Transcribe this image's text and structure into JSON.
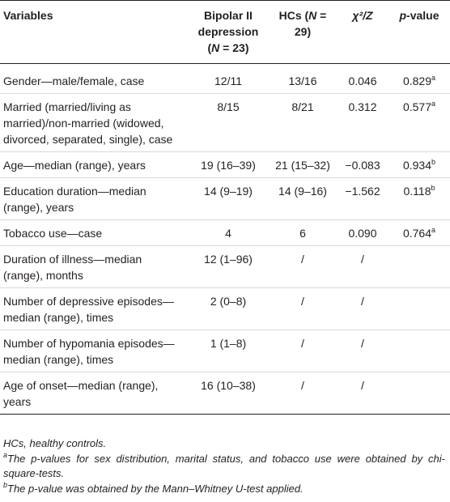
{
  "table": {
    "headers": {
      "variables": "Variables",
      "bipolar": "Bipolar II depression (",
      "bipolar_n": "N",
      "bipolar_tail": " = 23)",
      "hcs": "HCs (",
      "hcs_n": "N",
      "hcs_tail": " = 29)",
      "stat": "χ²/Z",
      "pvalue_p": "p",
      "pvalue_tail": "-value"
    },
    "rows": [
      {
        "variable": "Gender—male/female, case",
        "bipolar": "12/11",
        "hcs": "13/16",
        "stat": "0.046",
        "p": "0.829",
        "sup": "a"
      },
      {
        "variable": "Married (married/living as married)/non-married (widowed, divorced, separated, single), case",
        "bipolar": "8/15",
        "hcs": "8/21",
        "stat": "0.312",
        "p": "0.577",
        "sup": "a"
      },
      {
        "variable": "Age—median (range), years",
        "bipolar": "19 (16–39)",
        "hcs": "21 (15–32)",
        "stat": "−0.083",
        "p": "0.934",
        "sup": "b"
      },
      {
        "variable": "Education duration—median (range), years",
        "bipolar": "14 (9–19)",
        "hcs": "14 (9–16)",
        "stat": "−1.562",
        "p": "0.118",
        "sup": "b"
      },
      {
        "variable": "Tobacco use—case",
        "bipolar": "4",
        "hcs": "6",
        "stat": "0.090",
        "p": "0.764",
        "sup": "a"
      },
      {
        "variable": "Duration of illness—median (range), months",
        "bipolar": "12 (1–96)",
        "hcs": "/",
        "stat": "/",
        "p": "",
        "sup": ""
      },
      {
        "variable": "Number of depressive episodes—median (range), times",
        "bipolar": "2 (0–8)",
        "hcs": "/",
        "stat": "/",
        "p": "",
        "sup": ""
      },
      {
        "variable": "Number of hypomania episodes—median (range), times",
        "bipolar": "1 (1–8)",
        "hcs": "/",
        "stat": "/",
        "p": "",
        "sup": ""
      },
      {
        "variable": "Age of onset—median (range), years",
        "bipolar": "16 (10–38)",
        "hcs": "/",
        "stat": "/",
        "p": "",
        "sup": ""
      }
    ]
  },
  "notes": {
    "abbrev": "HCs, healthy controls.",
    "a_mark": "a",
    "a_text": "The p-values for sex distribution, marital status, and tobacco use were obtained by chi-square-tests.",
    "b_mark": "b",
    "b_text": "The p-value was obtained by the Mann–Whitney U-test applied."
  }
}
